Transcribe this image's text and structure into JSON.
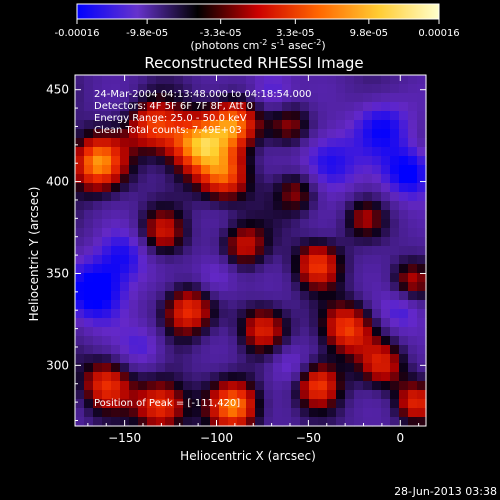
{
  "colorbar": {
    "ticks": [
      "-0.00016",
      "-9.8e-05",
      "-3.3e-05",
      "3.3e-05",
      "9.8e-05",
      "0.00016"
    ],
    "tick_values": [
      -0.00016,
      -9.8e-05,
      -3.3e-05,
      3.3e-05,
      9.8e-05,
      0.00016
    ],
    "unit_label": "(photons cm",
    "unit_sup1": "-2",
    "unit_mid": " s",
    "unit_sup2": "-1",
    "unit_mid2": " asec",
    "unit_sup3": "-2",
    "unit_end": ")",
    "stops": [
      "#0000ff",
      "#6633cc",
      "#000000",
      "#cc0000",
      "#ff6600",
      "#ffcc33",
      "#ffffcc"
    ]
  },
  "chart_data": {
    "type": "heatmap",
    "title": "Reconstructed RHESSI Image",
    "xlabel": "Heliocentric X (arcsec)",
    "ylabel": "Heliocentric Y (arcsec)",
    "xlim": [
      -177,
      14
    ],
    "ylim": [
      267,
      458
    ],
    "xticks": [
      -150,
      -100,
      -50,
      0
    ],
    "yticks": [
      300,
      350,
      400,
      450
    ],
    "annotations": [
      "24-Mar-2004 04:13:48.000 to 04:18:54.000",
      "Detectors: 4F 5F 6F 7F 8F, Att 0",
      "Energy Range: 25.0 - 50.0 keV",
      "Clean     Total counts: 7.49E+03"
    ],
    "peak_label": "Position of Peak = [-111,420]",
    "peak": [
      -111,
      420
    ],
    "blobs": [
      {
        "x": -165,
        "y": 410,
        "v": 0.95,
        "s": 11
      },
      {
        "x": -135,
        "y": 430,
        "v": 0.7,
        "s": 10
      },
      {
        "x": -111,
        "y": 420,
        "v": 1.0,
        "s": 12
      },
      {
        "x": -90,
        "y": 432,
        "v": 0.85,
        "s": 10
      },
      {
        "x": -95,
        "y": 402,
        "v": 0.7,
        "s": 10
      },
      {
        "x": -60,
        "y": 430,
        "v": 0.5,
        "s": 9
      },
      {
        "x": -55,
        "y": 395,
        "v": 0.55,
        "s": 9
      },
      {
        "x": -130,
        "y": 372,
        "v": 0.55,
        "s": 9
      },
      {
        "x": -85,
        "y": 365,
        "v": 0.6,
        "s": 9
      },
      {
        "x": -45,
        "y": 355,
        "v": 0.7,
        "s": 9
      },
      {
        "x": -20,
        "y": 380,
        "v": 0.4,
        "s": 8
      },
      {
        "x": -115,
        "y": 330,
        "v": 0.75,
        "s": 10
      },
      {
        "x": -75,
        "y": 320,
        "v": 0.6,
        "s": 9
      },
      {
        "x": -30,
        "y": 320,
        "v": 0.8,
        "s": 10
      },
      {
        "x": -10,
        "y": 300,
        "v": 0.6,
        "s": 9
      },
      {
        "x": -160,
        "y": 290,
        "v": 0.7,
        "s": 10
      },
      {
        "x": -130,
        "y": 278,
        "v": 0.85,
        "s": 10
      },
      {
        "x": -90,
        "y": 278,
        "v": 0.9,
        "s": 10
      },
      {
        "x": -45,
        "y": 290,
        "v": 0.75,
        "s": 9
      },
      {
        "x": 8,
        "y": 280,
        "v": 0.6,
        "s": 8
      },
      {
        "x": 5,
        "y": 345,
        "v": 0.5,
        "s": 8
      },
      {
        "x": -40,
        "y": 410,
        "v": -0.7,
        "s": 12
      },
      {
        "x": -10,
        "y": 430,
        "v": -0.65,
        "s": 11
      },
      {
        "x": 5,
        "y": 405,
        "v": -0.8,
        "s": 10
      },
      {
        "x": -165,
        "y": 340,
        "v": -0.9,
        "s": 12
      },
      {
        "x": -150,
        "y": 360,
        "v": -0.55,
        "s": 10
      },
      {
        "x": -100,
        "y": 348,
        "v": -0.45,
        "s": 9
      },
      {
        "x": 0,
        "y": 330,
        "v": -0.45,
        "s": 9
      },
      {
        "x": -60,
        "y": 300,
        "v": -0.4,
        "s": 8
      },
      {
        "x": -140,
        "y": 310,
        "v": -0.4,
        "s": 9
      },
      {
        "x": -70,
        "y": 450,
        "v": -0.5,
        "s": 9
      }
    ]
  },
  "footer": {
    "timestamp": "28-Jun-2013 03:38"
  }
}
